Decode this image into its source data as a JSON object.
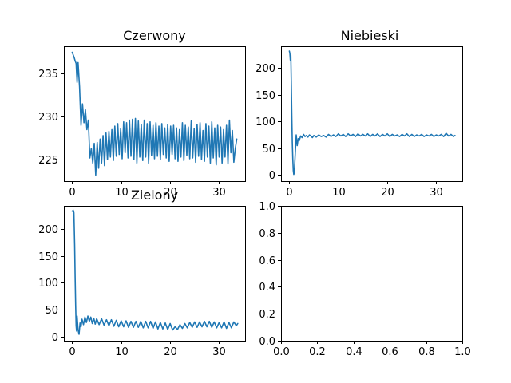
{
  "chart_data": [
    {
      "type": "line",
      "title": "Czerwony",
      "xlim": [
        -1.7,
        35.3
      ],
      "ylim": [
        222.5,
        238.2
      ],
      "xticks": [
        0,
        10,
        20,
        30
      ],
      "yticks": [
        225,
        230,
        235
      ],
      "color": "#1f77b4",
      "series": [
        {
          "x": [
            0,
            0.2,
            0.4,
            0.6,
            0.8,
            1.0,
            1.2,
            1.5,
            1.8,
            2.1,
            2.4,
            2.7,
            3.0,
            3.3,
            3.6,
            3.9,
            4.2,
            4.5,
            4.8,
            5.1,
            5.4,
            5.7,
            6.0,
            6.3,
            6.6,
            6.9,
            7.2,
            7.5,
            7.8,
            8.1,
            8.4,
            8.7,
            9.0,
            9.3,
            9.6,
            9.9,
            10.2,
            10.5,
            10.8,
            11.1,
            11.4,
            11.7,
            12.0,
            12.3,
            12.6,
            12.9,
            13.2,
            13.5,
            13.8,
            14.1,
            14.4,
            14.7,
            15.0,
            15.3,
            15.6,
            15.9,
            16.2,
            16.5,
            16.8,
            17.1,
            17.4,
            17.7,
            18.0,
            18.3,
            18.6,
            18.9,
            19.2,
            19.5,
            19.8,
            20.1,
            20.4,
            20.7,
            21.0,
            21.3,
            21.6,
            21.9,
            22.2,
            22.5,
            22.8,
            23.1,
            23.4,
            23.7,
            24.0,
            24.3,
            24.6,
            24.9,
            25.2,
            25.5,
            25.8,
            26.1,
            26.4,
            26.7,
            27.0,
            27.3,
            27.6,
            27.9,
            28.2,
            28.5,
            28.8,
            29.1,
            29.4,
            29.7,
            30.0,
            30.3,
            30.6,
            30.9,
            31.2,
            31.5,
            31.8,
            32.1,
            32.4,
            32.7,
            33.0,
            33.3,
            33.6
          ],
          "y": [
            237.5,
            237.2,
            236.9,
            236.5,
            236.2,
            234.0,
            236.3,
            233.5,
            229.0,
            231.5,
            229.3,
            230.8,
            228.5,
            229.6,
            225.2,
            226.3,
            224.6,
            226.9,
            223.2,
            227.0,
            224.0,
            227.4,
            224.6,
            227.8,
            224.3,
            228.1,
            225.0,
            228.3,
            225.3,
            228.5,
            224.9,
            228.9,
            225.4,
            229.2,
            225.6,
            228.6,
            225.1,
            229.4,
            225.8,
            229.3,
            225.2,
            229.6,
            225.4,
            229.7,
            225.0,
            229.8,
            224.6,
            229.5,
            225.3,
            229.1,
            224.9,
            229.6,
            225.3,
            229.2,
            224.6,
            229.4,
            225.5,
            229.0,
            225.1,
            229.3,
            225.4,
            228.9,
            225.0,
            229.2,
            225.6,
            228.7,
            225.2,
            229.1,
            224.8,
            228.9,
            225.6,
            229.0,
            225.1,
            228.7,
            224.8,
            228.5,
            225.3,
            229.3,
            224.9,
            229.0,
            225.5,
            228.8,
            225.1,
            229.5,
            225.2,
            228.6,
            224.7,
            229.1,
            225.4,
            229.3,
            225.0,
            228.4,
            224.8,
            229.2,
            225.3,
            228.9,
            224.6,
            229.4,
            225.2,
            228.7,
            224.4,
            229.0,
            225.3,
            228.8,
            224.6,
            228.5,
            225.3,
            229.0,
            224.5,
            229.6,
            225.8,
            228.4,
            224.7,
            226.3,
            227.4
          ]
        }
      ]
    },
    {
      "type": "line",
      "title": "Niebieski",
      "xlim": [
        -1.7,
        35.3
      ],
      "ylim": [
        -11.5,
        241
      ],
      "xticks": [
        0,
        10,
        20,
        30
      ],
      "yticks": [
        0,
        50,
        100,
        150,
        200
      ],
      "color": "#1f77b4",
      "series": [
        {
          "x": [
            0,
            0.1,
            0.2,
            0.3,
            0.4,
            0.5,
            0.6,
            0.7,
            0.8,
            0.9,
            1.0,
            1.2,
            1.4,
            1.6,
            1.8,
            2.0,
            2.3,
            2.6,
            2.9,
            3.2,
            3.5,
            3.8,
            4.1,
            4.4,
            4.7,
            5.0,
            5.5,
            6.0,
            6.5,
            7.0,
            7.5,
            8.0,
            8.5,
            9.0,
            9.5,
            10.0,
            10.5,
            11.0,
            11.5,
            12.0,
            12.5,
            13.0,
            13.5,
            14.0,
            14.5,
            15.0,
            15.5,
            16.0,
            16.5,
            17.0,
            17.5,
            18.0,
            18.5,
            19.0,
            19.5,
            20.0,
            20.5,
            21.0,
            21.5,
            22.0,
            22.5,
            23.0,
            23.5,
            24.0,
            24.5,
            25.0,
            25.5,
            26.0,
            26.5,
            27.0,
            27.5,
            28.0,
            28.5,
            29.0,
            29.5,
            30.0,
            30.5,
            31.0,
            31.5,
            32.0,
            32.5,
            33.0,
            33.5,
            33.8
          ],
          "y": [
            232,
            228,
            215,
            224,
            170,
            110,
            62,
            30,
            8,
            1,
            4,
            40,
            75,
            55,
            68,
            64,
            73,
            70,
            76,
            72,
            74,
            71,
            75,
            73,
            70,
            74,
            71,
            75,
            72,
            74,
            71,
            76,
            72,
            75,
            72,
            77,
            73,
            76,
            72,
            77,
            73,
            76,
            72,
            77,
            73,
            76,
            73,
            77,
            72,
            76,
            73,
            77,
            72,
            76,
            73,
            77,
            72,
            76,
            73,
            75,
            72,
            76,
            73,
            77,
            72,
            76,
            72,
            75,
            73,
            76,
            72,
            75,
            73,
            76,
            72,
            75,
            73,
            76,
            72,
            78,
            73,
            76,
            72,
            74
          ]
        }
      ]
    },
    {
      "type": "line",
      "title": "Zielony",
      "xlim": [
        -1.7,
        35.3
      ],
      "ylim": [
        -8,
        243
      ],
      "xticks": [
        0,
        10,
        20,
        30
      ],
      "yticks": [
        0,
        50,
        100,
        150,
        200
      ],
      "color": "#1f77b4",
      "series": [
        {
          "x": [
            0,
            0.2,
            0.35,
            0.5,
            0.6,
            0.7,
            0.8,
            0.9,
            1.0,
            1.2,
            1.4,
            1.6,
            1.8,
            2.0,
            2.3,
            2.6,
            2.9,
            3.2,
            3.5,
            3.8,
            4.1,
            4.4,
            4.7,
            5.0,
            5.5,
            6.0,
            6.5,
            7.0,
            7.5,
            8.0,
            8.5,
            9.0,
            9.5,
            10.0,
            10.5,
            11.0,
            11.5,
            12.0,
            12.5,
            13.0,
            13.5,
            14.0,
            14.5,
            15.0,
            15.5,
            16.0,
            16.5,
            17.0,
            17.5,
            18.0,
            18.5,
            19.0,
            19.5,
            20.0,
            20.5,
            21.0,
            21.5,
            22.0,
            22.5,
            23.0,
            23.5,
            24.0,
            24.5,
            25.0,
            25.5,
            26.0,
            26.5,
            27.0,
            27.5,
            28.0,
            28.5,
            29.0,
            29.5,
            30.0,
            30.5,
            31.0,
            31.5,
            32.0,
            32.5,
            33.0,
            33.5,
            33.8
          ],
          "y": [
            233,
            235,
            230,
            170,
            110,
            60,
            20,
            10,
            38,
            12,
            4,
            25,
            18,
            32,
            22,
            36,
            26,
            38,
            28,
            36,
            24,
            34,
            23,
            33,
            22,
            33,
            21,
            31,
            20,
            31,
            19,
            30,
            18,
            29,
            18,
            29,
            17,
            28,
            17,
            28,
            17,
            28,
            16,
            28,
            16,
            28,
            15,
            27,
            14,
            26,
            14,
            25,
            13,
            24,
            12,
            18,
            13,
            22,
            15,
            24,
            16,
            26,
            17,
            27,
            17,
            27,
            18,
            28,
            18,
            28,
            17,
            27,
            16,
            26,
            16,
            27,
            15,
            26,
            16,
            27,
            20,
            24
          ]
        }
      ]
    },
    {
      "type": "line",
      "title": "",
      "xlim": [
        0,
        1
      ],
      "ylim": [
        0,
        1
      ],
      "xticks": [
        0.0,
        0.2,
        0.4,
        0.6,
        0.8,
        1.0
      ],
      "yticks": [
        0.0,
        0.2,
        0.4,
        0.6,
        0.8,
        1.0
      ],
      "tick_labels_x": [
        "0.0",
        "0.2",
        "0.4",
        "0.6",
        "0.8",
        "1.0"
      ],
      "tick_labels_y": [
        "0.0",
        "0.2",
        "0.4",
        "0.6",
        "0.8",
        "1.0"
      ],
      "color": "#1f77b4",
      "series": []
    }
  ]
}
